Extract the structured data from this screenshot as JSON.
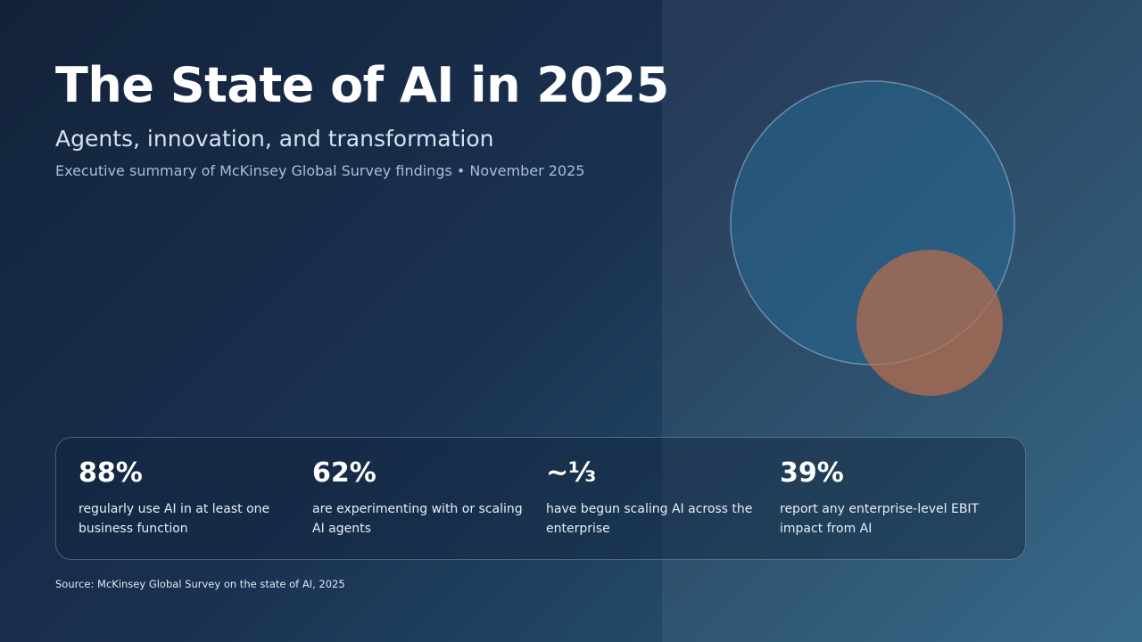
{
  "header": {
    "title": "The State of AI in 2025",
    "subtitle": "Agents, innovation, and transformation",
    "meta": "Executive summary of McKinsey Global Survey findings • November 2025"
  },
  "stats": [
    {
      "value": "88%",
      "label": "regularly use AI in at least one business function"
    },
    {
      "value": "62%",
      "label": "are experimenting with or scaling AI agents"
    },
    {
      "value": "~⅓",
      "label": "have begun scaling AI across the enterprise"
    },
    {
      "value": "39%",
      "label": "report any enterprise-level EBIT impact from AI"
    }
  ],
  "source": "Source: McKinsey Global Survey on the state of AI, 2025"
}
